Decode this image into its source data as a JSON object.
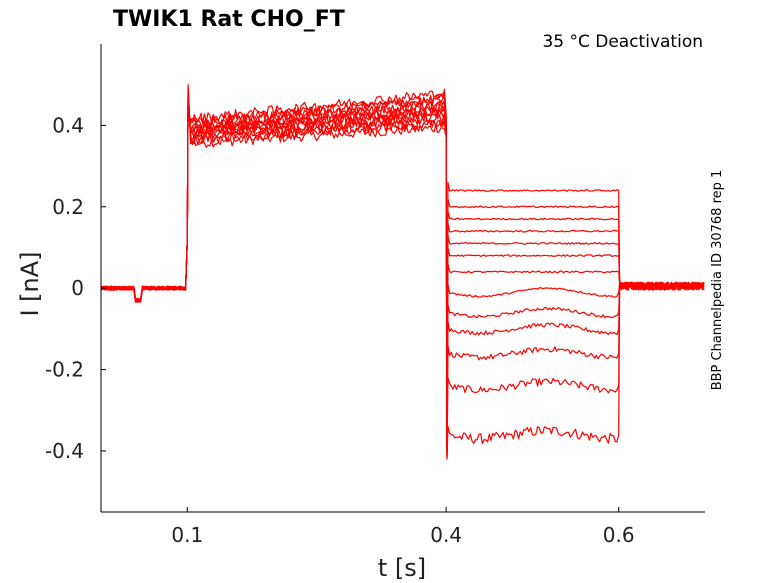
{
  "chart_data": {
    "type": "line",
    "title": "TWIK1  Rat  CHO_FT",
    "annotation": "35 °C  Deactivation",
    "side_label": "BBP Channelpedia ID 30768 rep 1",
    "xlabel": "t [s]",
    "ylabel": "I [nA]",
    "xlim": [
      0.0,
      0.7
    ],
    "ylim": [
      -0.55,
      0.6
    ],
    "x_ticks": [
      0.1,
      0.4,
      0.6
    ],
    "x_tick_labels": [
      "0.1",
      "0.4",
      "0.6"
    ],
    "y_ticks": [
      0.4,
      0.2,
      0.0,
      -0.2,
      -0.4
    ],
    "y_tick_labels": [
      "0.4",
      "0.2",
      "0",
      "-0.2",
      "-0.4"
    ],
    "grid": false,
    "color": "#ff0000",
    "protocol": {
      "baseline": 0.0,
      "prepulse_start": 0.1,
      "prepulse_end": 0.4,
      "tail_end": 0.6,
      "holding_artifact": {
        "t": 0.044,
        "value": -0.03
      }
    },
    "series": [
      {
        "prepulse": 0.37,
        "tail": -0.36
      },
      {
        "prepulse": 0.38,
        "tail": -0.24
      },
      {
        "prepulse": 0.38,
        "tail": -0.16
      },
      {
        "prepulse": 0.39,
        "tail": -0.1
      },
      {
        "prepulse": 0.39,
        "tail": -0.06
      },
      {
        "prepulse": 0.4,
        "tail": -0.01
      },
      {
        "prepulse": 0.4,
        "tail": 0.04
      },
      {
        "prepulse": 0.4,
        "tail": 0.08
      },
      {
        "prepulse": 0.41,
        "tail": 0.11
      },
      {
        "prepulse": 0.41,
        "tail": 0.14
      },
      {
        "prepulse": 0.42,
        "tail": 0.17
      },
      {
        "prepulse": 0.42,
        "tail": 0.2
      },
      {
        "prepulse": 0.43,
        "tail": 0.24
      }
    ]
  }
}
